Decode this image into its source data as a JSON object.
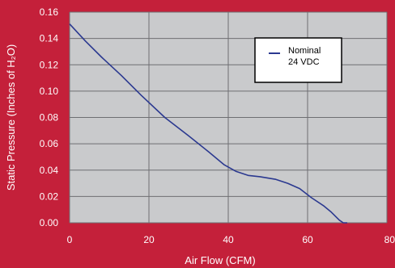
{
  "colors": {
    "background": "#c4203a",
    "plot_area": "#c9cacc",
    "grid": "#6e6e72",
    "series": "#2b3990",
    "text": "#ffffff"
  },
  "chart_data": {
    "type": "line",
    "xlabel": "Air Flow (CFM)",
    "ylabel": "Static Pressure (Inches of H₂O)",
    "xlim": [
      0,
      80
    ],
    "ylim": [
      0,
      0.16
    ],
    "x_ticks": [
      "0",
      "20",
      "40",
      "60",
      "80"
    ],
    "y_ticks": [
      "0.00",
      "0.02",
      "0.04",
      "0.06",
      "0.08",
      "0.10",
      "0.12",
      "0.14",
      "0.16"
    ],
    "grid": true,
    "legend_position": "top-right",
    "series": [
      {
        "name": "Nominal 24 VDC",
        "legend_lines": [
          "Nominal",
          "24 VDC"
        ],
        "x": [
          0,
          4,
          8,
          13,
          18,
          24,
          30,
          35,
          39,
          42,
          45,
          48,
          52,
          55,
          58,
          61,
          64,
          66,
          68,
          69,
          70
        ],
        "y": [
          0.151,
          0.138,
          0.126,
          0.112,
          0.097,
          0.08,
          0.066,
          0.054,
          0.044,
          0.039,
          0.036,
          0.035,
          0.033,
          0.03,
          0.026,
          0.019,
          0.013,
          0.008,
          0.002,
          0.0,
          0.0
        ]
      }
    ]
  }
}
